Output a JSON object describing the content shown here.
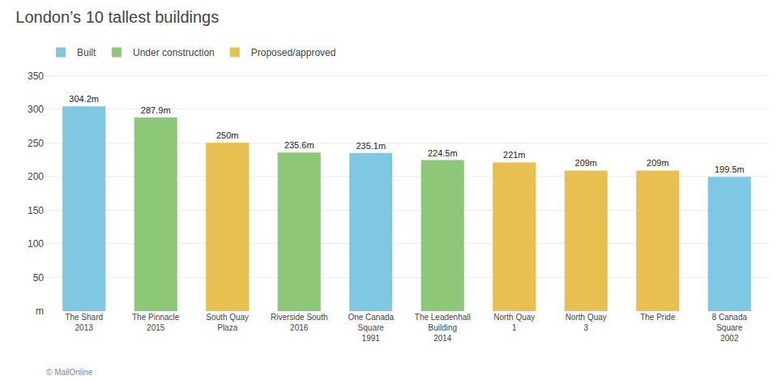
{
  "chart_data": {
    "type": "bar",
    "title": "London’s 10 tallest buildings",
    "categories": [
      "The Shard\n2013",
      "The Pinnacle\n2015",
      "South Quay\nPlaza",
      "Riverside South\n2016",
      "One Canada\nSquare\n1991",
      "The Leadenhall\nBuilding\n2014",
      "North Quay\n1",
      "North Quay\n3",
      "The Pride",
      "8 Canada\nSquare\n2002"
    ],
    "series": [
      {
        "name": "Built",
        "color": "#7EC8E3",
        "values": [
          304.2,
          null,
          null,
          null,
          235.1,
          null,
          null,
          null,
          null,
          199.5
        ],
        "value_labels": [
          "304.2m",
          null,
          null,
          null,
          "235.1m",
          null,
          null,
          null,
          null,
          "199.5m"
        ]
      },
      {
        "name": "Under construction",
        "color": "#8DC878",
        "values": [
          null,
          287.9,
          null,
          235.6,
          null,
          224.5,
          null,
          null,
          null,
          null
        ],
        "value_labels": [
          null,
          "287.9m",
          null,
          "235.6m",
          null,
          "224.5m",
          null,
          null,
          null,
          null
        ]
      },
      {
        "name": "Proposed/approved",
        "color": "#E8C050",
        "values": [
          null,
          null,
          250.0,
          null,
          null,
          null,
          221.0,
          209.0,
          209.0,
          null
        ],
        "value_labels": [
          null,
          null,
          "250m",
          null,
          null,
          null,
          "221m",
          "209m",
          "209m",
          null
        ]
      }
    ],
    "ylim": [
      0,
      360
    ],
    "yticks": [
      {
        "value": 0,
        "label": "m"
      },
      50,
      100,
      150,
      200,
      250,
      300,
      350
    ],
    "grid": true,
    "legend": "top-left",
    "data_labels": true,
    "annotations": [
      "© MailOnline"
    ]
  }
}
